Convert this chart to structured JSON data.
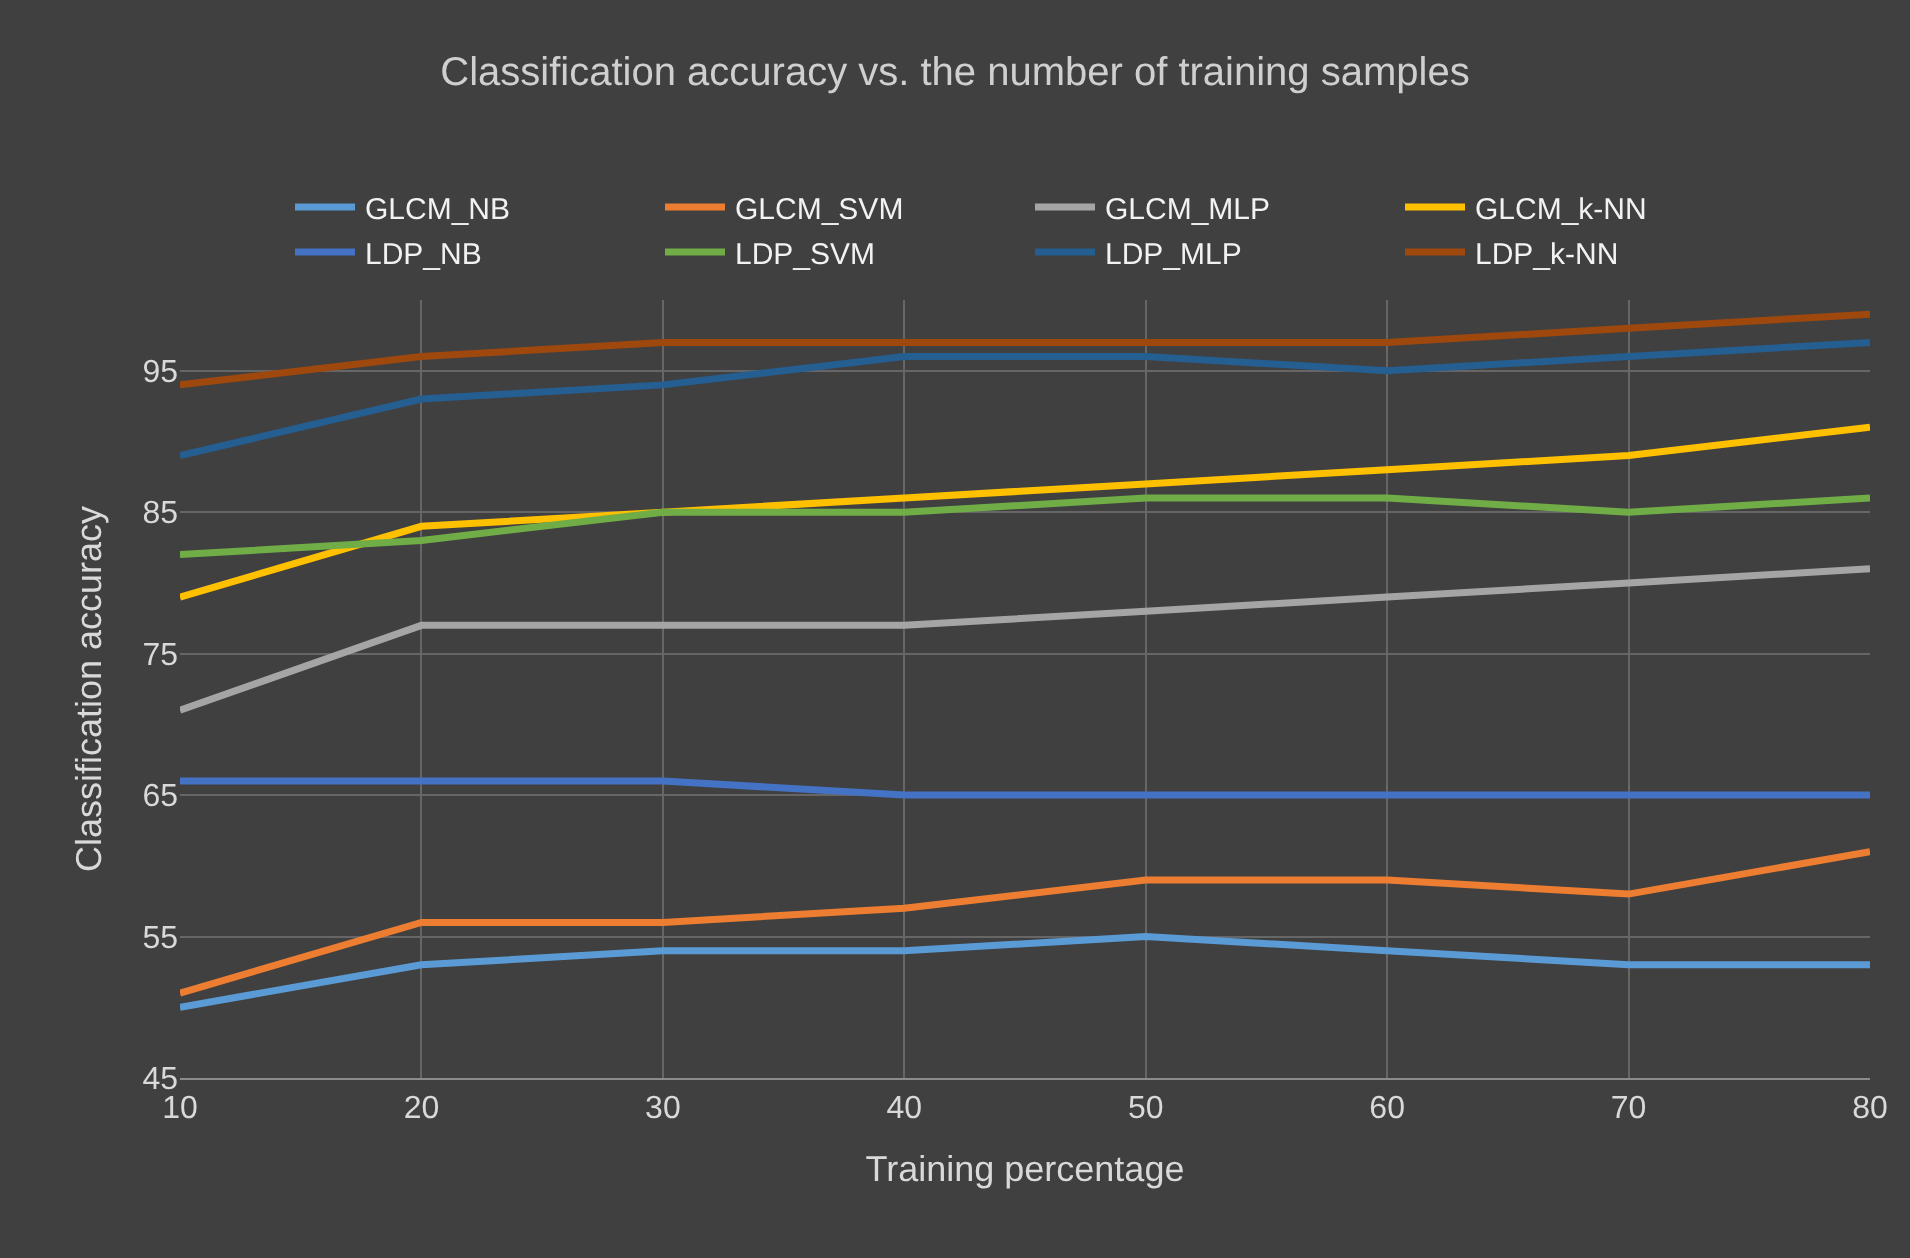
{
  "chart_data": {
    "type": "line",
    "title": "Classification accuracy vs. the number of training samples",
    "xlabel": "Training percentage",
    "ylabel": "Classification accuracy",
    "x": [
      10,
      20,
      30,
      40,
      50,
      60,
      70,
      80
    ],
    "xlim": [
      10,
      80
    ],
    "xticks": [
      10,
      20,
      30,
      40,
      50,
      60,
      70,
      80
    ],
    "ylim": [
      45,
      100
    ],
    "yticks": [
      45,
      55,
      65,
      75,
      85,
      95
    ],
    "grid": true,
    "legend": "top",
    "marker": "none",
    "line_style": "solid",
    "series": [
      {
        "name": "GLCM_NB",
        "color": "#5b9bd5",
        "values": [
          50,
          53,
          54,
          54,
          55,
          54,
          53,
          53
        ]
      },
      {
        "name": "GLCM_SVM",
        "color": "#ed7d31",
        "values": [
          51,
          56,
          56,
          57,
          59,
          59,
          58,
          61
        ]
      },
      {
        "name": "GLCM_MLP",
        "color": "#a5a5a5",
        "values": [
          71,
          77,
          77,
          77,
          78,
          79,
          80,
          81
        ]
      },
      {
        "name": "GLCM_k-NN",
        "color": "#ffc000",
        "values": [
          79,
          84,
          85,
          86,
          87,
          88,
          89,
          91
        ]
      },
      {
        "name": "LDP_NB",
        "color": "#4472c4",
        "values": [
          66,
          66,
          66,
          65,
          65,
          65,
          65,
          65
        ]
      },
      {
        "name": "LDP_SVM",
        "color": "#70ad47",
        "values": [
          82,
          83,
          85,
          85,
          86,
          86,
          85,
          86
        ]
      },
      {
        "name": "LDP_MLP",
        "color": "#255e91",
        "values": [
          89,
          93,
          94,
          96,
          96,
          95,
          96,
          97
        ]
      },
      {
        "name": "LDP_k-NN",
        "color": "#9e480e",
        "values": [
          94,
          96,
          97,
          97,
          97,
          97,
          98,
          99
        ]
      }
    ]
  }
}
